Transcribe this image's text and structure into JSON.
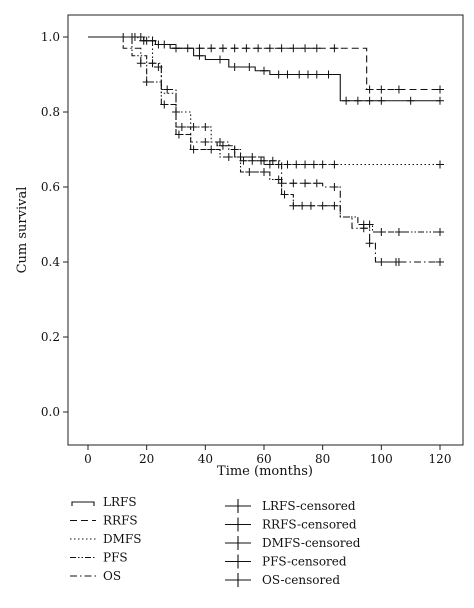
{
  "chart_data": {
    "type": "line",
    "title": "",
    "xlabel": "Time (months)",
    "ylabel": "Cum survival",
    "xlim": [
      0,
      120
    ],
    "ylim": [
      0.0,
      1.0
    ],
    "x_ticks": [
      "0",
      "20",
      "40",
      "60",
      "80",
      "100",
      "120"
    ],
    "y_ticks": [
      "0.0",
      "0.2",
      "0.4",
      "0.6",
      "0.8",
      "1.0"
    ],
    "grid": false,
    "series": [
      {
        "name": "LRFS",
        "style": "solid",
        "steps": [
          [
            0,
            1.0
          ],
          [
            19,
            0.99
          ],
          [
            23,
            0.98
          ],
          [
            28,
            0.97
          ],
          [
            36,
            0.95
          ],
          [
            40,
            0.94
          ],
          [
            48,
            0.92
          ],
          [
            57,
            0.91
          ],
          [
            62,
            0.9
          ],
          [
            86,
            0.83
          ],
          [
            120,
            0.83
          ]
        ],
        "censored_x": [
          12,
          15,
          18,
          20,
          24,
          30,
          38,
          45,
          50,
          55,
          60,
          65,
          68,
          72,
          75,
          78,
          82,
          88,
          92,
          96,
          100,
          110,
          120
        ]
      },
      {
        "name": "RRFS",
        "style": "dashed",
        "steps": [
          [
            0,
            1.0
          ],
          [
            17,
            0.99
          ],
          [
            23,
            0.98
          ],
          [
            30,
            0.97
          ],
          [
            93,
            0.97
          ],
          [
            95,
            0.86
          ],
          [
            120,
            0.86
          ]
        ],
        "censored_x": [
          16,
          19,
          22,
          26,
          30,
          34,
          38,
          42,
          46,
          50,
          54,
          58,
          62,
          66,
          70,
          74,
          78,
          84,
          96,
          100,
          106,
          120
        ]
      },
      {
        "name": "DMFS",
        "style": "dotted",
        "steps": [
          [
            0,
            1.0
          ],
          [
            22,
            0.92
          ],
          [
            25,
            0.85
          ],
          [
            30,
            0.8
          ],
          [
            35,
            0.76
          ],
          [
            42,
            0.72
          ],
          [
            48,
            0.7
          ],
          [
            52,
            0.67
          ],
          [
            60,
            0.66
          ],
          [
            120,
            0.66
          ]
        ],
        "censored_x": [
          24,
          30,
          36,
          40,
          45,
          50,
          53,
          56,
          59,
          62,
          65,
          68,
          71,
          74,
          77,
          80,
          84,
          120
        ]
      },
      {
        "name": "PFS",
        "style": "dashdotdot",
        "steps": [
          [
            0,
            1.0
          ],
          [
            15,
            0.95
          ],
          [
            20,
            0.88
          ],
          [
            25,
            0.82
          ],
          [
            30,
            0.74
          ],
          [
            35,
            0.7
          ],
          [
            45,
            0.68
          ],
          [
            52,
            0.64
          ],
          [
            62,
            0.62
          ],
          [
            66,
            0.58
          ],
          [
            70,
            0.55
          ],
          [
            86,
            0.52
          ],
          [
            92,
            0.5
          ],
          [
            97,
            0.48
          ],
          [
            120,
            0.48
          ]
        ],
        "censored_x": [
          20,
          26,
          31,
          36,
          42,
          48,
          55,
          60,
          65,
          67,
          70,
          73,
          76,
          80,
          84,
          94,
          96,
          100,
          106,
          120
        ]
      },
      {
        "name": "OS",
        "style": "dashdot",
        "steps": [
          [
            0,
            1.0
          ],
          [
            12,
            0.97
          ],
          [
            18,
            0.93
          ],
          [
            25,
            0.86
          ],
          [
            30,
            0.76
          ],
          [
            35,
            0.72
          ],
          [
            44,
            0.71
          ],
          [
            50,
            0.68
          ],
          [
            60,
            0.67
          ],
          [
            66,
            0.61
          ],
          [
            80,
            0.6
          ],
          [
            86,
            0.52
          ],
          [
            90,
            0.49
          ],
          [
            96,
            0.45
          ],
          [
            98,
            0.4
          ],
          [
            120,
            0.4
          ]
        ],
        "censored_x": [
          18,
          22,
          27,
          32,
          40,
          46,
          52,
          56,
          60,
          63,
          66,
          70,
          74,
          78,
          84,
          94,
          96,
          100,
          105,
          106,
          120
        ]
      }
    ],
    "legend": {
      "placement": "bottom",
      "left_entries": [
        "LRFS",
        "RRFS",
        "DMFS",
        "PFS",
        "OS"
      ],
      "right_entries": [
        "LRFS-censored",
        "RRFS-censored",
        "DMFS-censored",
        "PFS-censored",
        "OS-censored"
      ]
    }
  }
}
